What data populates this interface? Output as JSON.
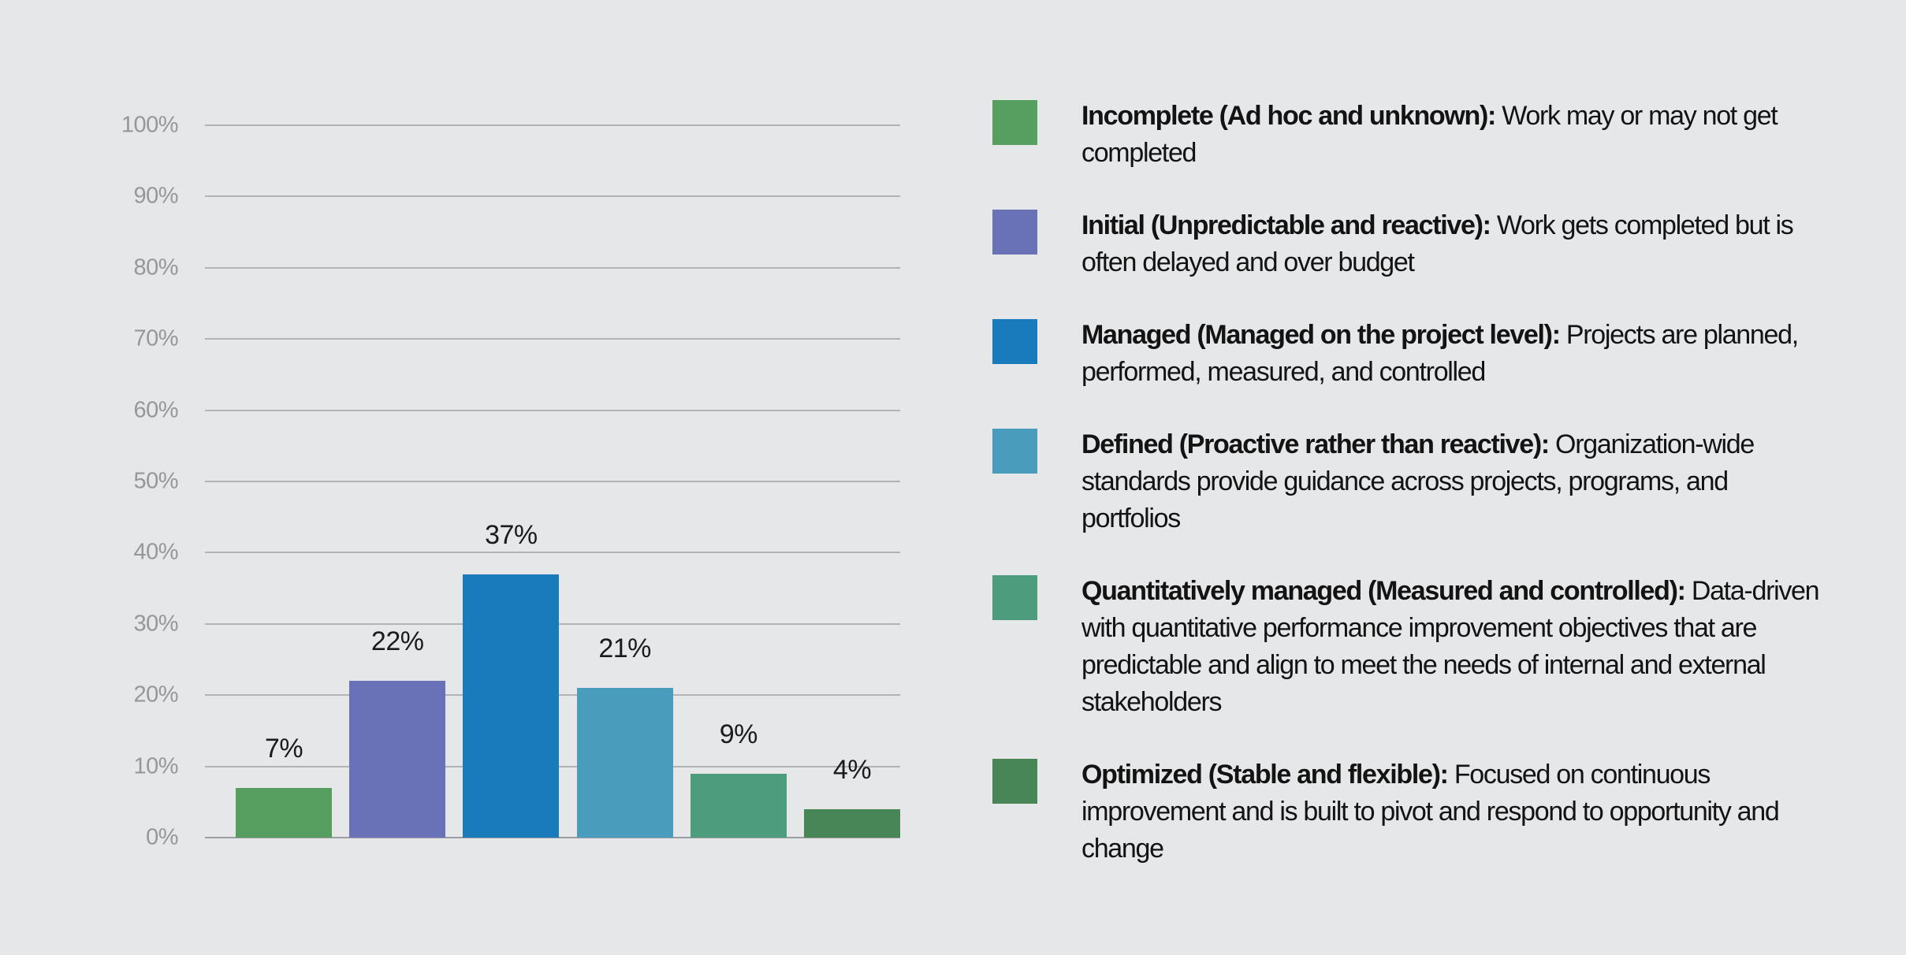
{
  "page": {
    "background_color": "#e6e7e9"
  },
  "chart_data": {
    "type": "bar",
    "title": "",
    "xlabel": "",
    "ylabel": "",
    "categories": [
      "Incomplete (Ad hoc and unknown)",
      "Initial (Unpredictable and reactive)",
      "Managed (Managed on the project level)",
      "Defined (Proactive rather than reactive)",
      "Quantitatively managed (Measured and controlled)",
      "Optimized (Stable and flexible)"
    ],
    "values": [
      7,
      22,
      37,
      21,
      9,
      4
    ],
    "value_labels": [
      "7%",
      "22%",
      "37%",
      "21%",
      "9%",
      "4%"
    ],
    "bar_colors": [
      "#569f61",
      "#6972b7",
      "#1a7bbc",
      "#4a9cbd",
      "#4d9c7e",
      "#488557"
    ],
    "ylim": [
      0,
      100
    ],
    "ytick_values": [
      0,
      10,
      20,
      30,
      40,
      50,
      60,
      70,
      80,
      90,
      100
    ],
    "ytick_labels": [
      "0%",
      "10%",
      "20%",
      "30%",
      "40%",
      "50%",
      "60%",
      "70%",
      "80%",
      "90%",
      "100%"
    ],
    "grid": "horizontal gridlines on",
    "x_axis_labels_shown": false,
    "legend_position": "right"
  },
  "legend": {
    "items": [
      {
        "swatch_color": "#569f61",
        "label": "Incomplete (Ad hoc and unknown):",
        "description": " Work may or may not get completed"
      },
      {
        "swatch_color": "#6972b7",
        "label": "Initial (Unpredictable and reactive):",
        "description": " Work gets completed but is often delayed and over budget"
      },
      {
        "swatch_color": "#1a7bbc",
        "label": "Managed (Managed on the project level):",
        "description": " Projects are planned, performed, measured, and controlled"
      },
      {
        "swatch_color": "#4a9cbd",
        "label": "Defined (Proactive rather than reactive):",
        "description": " Organization-wide standards provide guidance across projects, programs, and portfolios"
      },
      {
        "swatch_color": "#4d9c7e",
        "label": "Quantitatively managed (Measured and controlled):",
        "description": " Data-driven with quantitative performance improvement objectives that are predictable and align to meet the needs of internal and external stakeholders"
      },
      {
        "swatch_color": "#488557",
        "label": "Optimized (Stable and flexible):",
        "description": " Focused on continuous improvement and is built to pivot and respond to opportunity and change"
      }
    ]
  },
  "colors": {
    "background": "#e6e7e9",
    "gridline": "#b2b3b5",
    "axis_line": "#9c9da0",
    "tick_label": "#969799",
    "value_label": "#1b1b1b",
    "legend_text": "#131313"
  }
}
